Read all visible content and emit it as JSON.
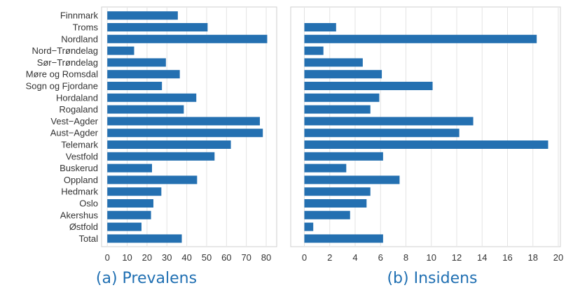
{
  "colors": {
    "bar": "#2470b1",
    "caption": "#1f6fb2",
    "grid": "#e3e3e3",
    "panel_border": "#cfcfcf"
  },
  "categories": [
    "Finnmark",
    "Troms",
    "Nordland",
    "Nord−Trøndelag",
    "Sør−Trøndelag",
    "Møre og Romsdal",
    "Sogn og Fjordane",
    "Hordaland",
    "Rogaland",
    "Vest−Agder",
    "Aust−Agder",
    "Telemark",
    "Vestfold",
    "Buskerud",
    "Oppland",
    "Hedmark",
    "Oslo",
    "Akershus",
    "Østfold",
    "Total"
  ],
  "chart_data": [
    {
      "type": "bar",
      "orientation": "horizontal",
      "title": "(a) Prevalens",
      "categories": [
        "Finnmark",
        "Troms",
        "Nordland",
        "Nord−Trøndelag",
        "Sør−Trøndelag",
        "Møre og Romsdal",
        "Sogn og Fjordane",
        "Hordaland",
        "Rogaland",
        "Vest−Agder",
        "Aust−Agder",
        "Telemark",
        "Vestfold",
        "Buskerud",
        "Oppland",
        "Hedmark",
        "Oslo",
        "Akershus",
        "Østfold",
        "Total"
      ],
      "values": [
        35.5,
        50.5,
        80.5,
        13.5,
        29.5,
        36.5,
        27.5,
        44.8,
        38.5,
        76.8,
        78.3,
        62.2,
        54.0,
        22.5,
        45.2,
        27.2,
        23.2,
        22.0,
        17.2,
        37.5
      ],
      "xlim": [
        0,
        82
      ],
      "ticks": [
        0,
        10,
        20,
        30,
        40,
        50,
        60,
        70,
        80
      ],
      "grid": true
    },
    {
      "type": "bar",
      "orientation": "horizontal",
      "title": "(b) Insidens",
      "categories": [
        "Finnmark",
        "Troms",
        "Nordland",
        "Nord−Trøndelag",
        "Sør−Trøndelag",
        "Møre og Romsdal",
        "Sogn og Fjordane",
        "Hordaland",
        "Rogaland",
        "Vest−Agder",
        "Aust−Agder",
        "Telemark",
        "Vestfold",
        "Buskerud",
        "Oppland",
        "Hedmark",
        "Oslo",
        "Akershus",
        "Østfold",
        "Total"
      ],
      "values": [
        null,
        2.5,
        18.3,
        1.5,
        4.6,
        6.1,
        10.1,
        5.9,
        5.2,
        13.3,
        12.2,
        19.2,
        6.2,
        3.3,
        7.5,
        5.2,
        4.9,
        3.6,
        0.7,
        6.2
      ],
      "xlim": [
        0,
        20
      ],
      "ticks": [
        0,
        2,
        4,
        6,
        8,
        10,
        12,
        14,
        16,
        18,
        20
      ],
      "grid": true
    }
  ]
}
